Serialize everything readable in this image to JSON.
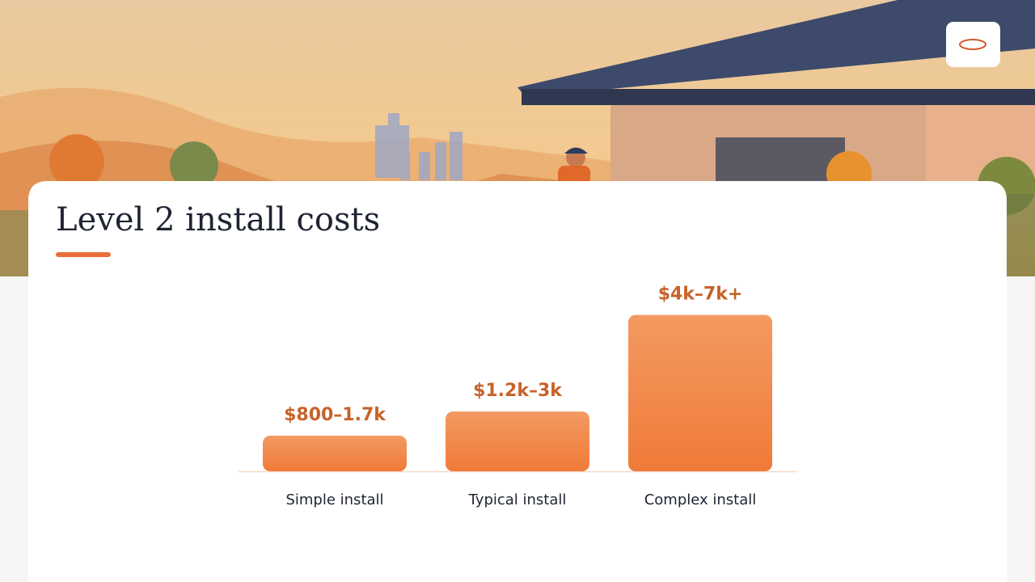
{
  "chart_data": {
    "type": "bar",
    "title": "Level 2 install costs",
    "categories": [
      "Simple install",
      "Typical install",
      "Complex install"
    ],
    "low": [
      800,
      1200,
      4000
    ],
    "high": [
      1700,
      3000,
      7000
    ],
    "value_labels": [
      "$800–1.7k",
      "$1.2k–3k",
      "$4k–7k+"
    ],
    "color": "#f0803f",
    "ylim": [
      0,
      6000
    ]
  }
}
